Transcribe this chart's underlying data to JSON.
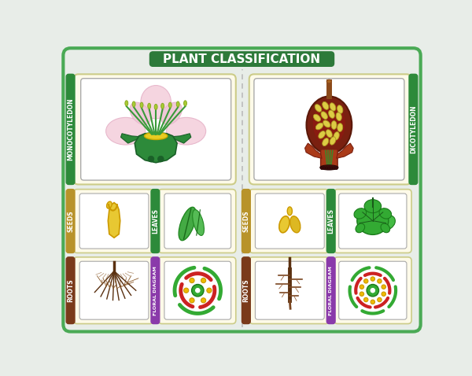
{
  "title": "PLANT CLASSIFICATION",
  "title_bg": "#2d7a3a",
  "title_text_color": "#ffffff",
  "bg_color": "#e8ede8",
  "outer_border": "#4aaa55",
  "left_label": "MONOCOTYLEDON",
  "right_label": "DICOTYLEDON",
  "label_green": "#2d8a3a",
  "label_gold": "#b8932a",
  "label_brown": "#7a3a1a",
  "label_purple": "#8a3aaa",
  "card_bg": "#fdfae8",
  "card_border": "#cccc88"
}
